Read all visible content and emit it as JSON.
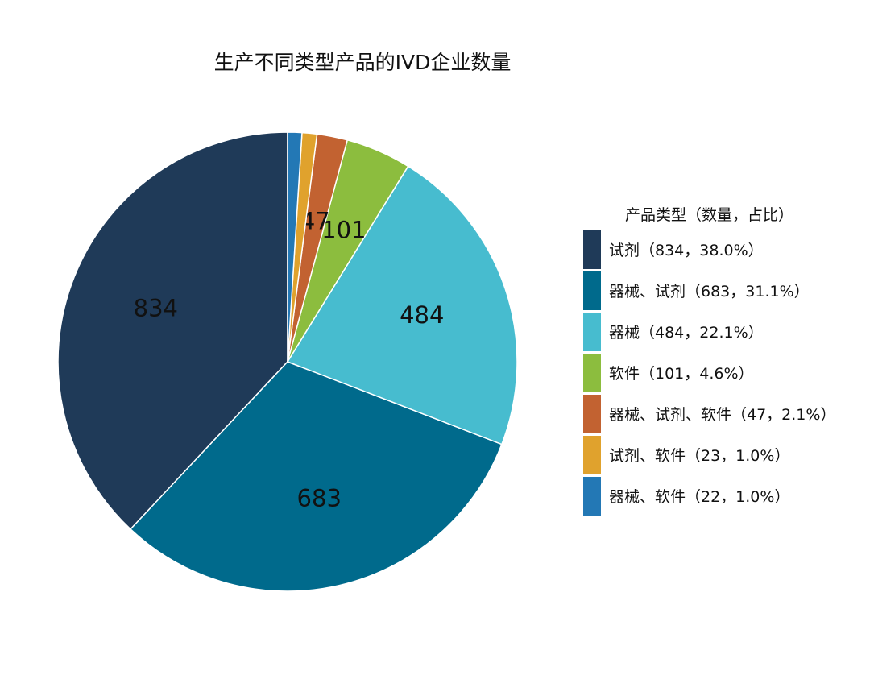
{
  "chart_data": {
    "type": "pie",
    "title": "生产不同类型产品的IVD企业数量",
    "legend_title": "产品类型（数量，占比）",
    "legend_position": "right",
    "slices": [
      {
        "name": "试剂",
        "value": 834,
        "label": "834",
        "legend": "试剂（834，38.0%）",
        "color": "#1f3a58"
      },
      {
        "name": "器械、试剂",
        "value": 683,
        "label": "683",
        "legend": "器械、试剂（683，31.1%）",
        "color": "#006a8c"
      },
      {
        "name": "器械",
        "value": 484,
        "label": "484",
        "legend": "器械（484，22.1%）",
        "color": "#47bccf"
      },
      {
        "name": "软件",
        "value": 101,
        "label": "101",
        "legend": "软件（101，4.6%）",
        "color": "#8cbd3e"
      },
      {
        "name": "器械、试剂、软件",
        "value": 47,
        "label": "47",
        "legend": "器械、试剂、软件（47，2.1%）",
        "color": "#c26231"
      },
      {
        "name": "试剂、软件",
        "value": 23,
        "label": "",
        "legend": "试剂、软件（23，1.0%）",
        "color": "#e0a22d"
      },
      {
        "name": "器械、软件",
        "value": 22,
        "label": "",
        "legend": "器械、软件（22，1.0%）",
        "color": "#2378b5"
      }
    ]
  }
}
